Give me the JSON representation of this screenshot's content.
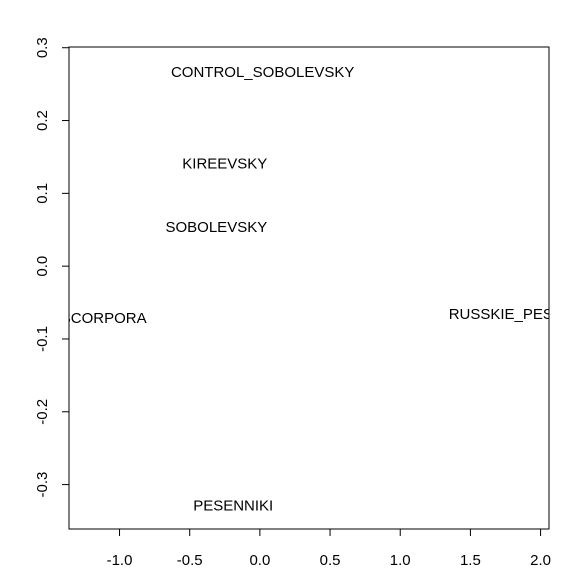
{
  "chart_data": {
    "type": "scatter",
    "title": "",
    "xlabel": "",
    "ylabel": "",
    "xlim": [
      -1.36,
      2.06
    ],
    "ylim": [
      -0.361,
      0.301
    ],
    "x_ticks": [
      -1.0,
      -0.5,
      0.0,
      0.5,
      1.0,
      1.5,
      2.0
    ],
    "x_tick_labels": [
      "-1.0",
      "-0.5",
      "0.0",
      "0.5",
      "1.0",
      "1.5",
      "2.0"
    ],
    "y_ticks": [
      0.3,
      0.2,
      0.1,
      0.0,
      -0.1,
      -0.2,
      -0.3
    ],
    "y_tick_labels": [
      "0.3",
      "0.2",
      "0.1",
      "0.0",
      "-0.1",
      "-0.2",
      "-0.3"
    ],
    "grid": false,
    "legend": "none",
    "points": [
      {
        "label": "CONTROL_SOBOLEVSKY",
        "x": 0.02,
        "y": 0.267
      },
      {
        "label": "KIREEVSKY",
        "x": -0.25,
        "y": 0.141
      },
      {
        "label": "SOBOLEVSKY",
        "x": -0.31,
        "y": 0.054
      },
      {
        "label": "RUSCORPORA",
        "x": -1.19,
        "y": -0.071
      },
      {
        "label": "RUSSKIE_PESNI",
        "x": 1.77,
        "y": -0.066
      },
      {
        "label": "PESENNIKI",
        "x": -0.19,
        "y": -0.329
      }
    ]
  }
}
